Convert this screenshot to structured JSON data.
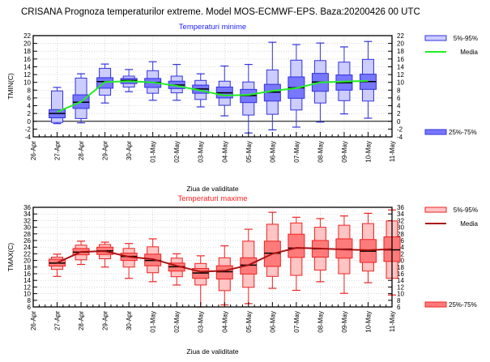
{
  "page_title": "CRISANA  Prognoza temperaturilor extreme.  Model MOS-ECMWF-EPS. Baza:20200426 00 UTC",
  "chart_data": [
    {
      "type": "box",
      "title": "Temperaturi minime",
      "title_color": "#2222ff",
      "xlabel": "Ziua de validitate",
      "ylabel": "TMIN(C)",
      "ylim": [
        -4,
        22
      ],
      "ytick_step": 2,
      "grid": true,
      "colors": {
        "outer": "#ccccff",
        "inner": "#7777ff",
        "stroke": "#3333dd",
        "median": "#000000",
        "mean_line": "#22ee22"
      },
      "x_ticks": [
        "26-Apr",
        "27-Apr",
        "28-Apr",
        "29-Apr",
        "30-Apr",
        "01-May",
        "02-May",
        "03-May",
        "04-May",
        "05-May",
        "06-May",
        "07-May",
        "08-May",
        "09-May",
        "10-May",
        "11-May"
      ],
      "legend": {
        "placement": "right",
        "items": [
          {
            "label": "5%-95%",
            "kind": "outer"
          },
          {
            "label": "Media",
            "kind": "mean"
          },
          {
            "label": "25%-75%",
            "kind": "inner"
          }
        ]
      },
      "days": [
        {
          "date": "27-Apr",
          "wmin": -0.6,
          "p5": -0.3,
          "p25": 0.9,
          "median": 2.0,
          "p75": 3.0,
          "p95": 7.8,
          "wmax": 8.7,
          "mean": 2.4
        },
        {
          "date": "28-Apr",
          "wmin": -0.4,
          "p5": 0.7,
          "p25": 3.3,
          "median": 4.9,
          "p75": 6.8,
          "p95": 11.1,
          "wmax": 12.2,
          "mean": 5.0
        },
        {
          "date": "29-Apr",
          "wmin": 4.7,
          "p5": 6.7,
          "p25": 8.5,
          "median": 10.2,
          "p75": 11.2,
          "p95": 13.6,
          "wmax": 14.7,
          "mean": 10.1
        },
        {
          "date": "30-Apr",
          "wmin": 7.6,
          "p5": 8.8,
          "p25": 9.7,
          "median": 10.5,
          "p75": 11.0,
          "p95": 11.6,
          "wmax": 13.3,
          "mean": 10.3
        },
        {
          "date": "01-May",
          "wmin": 5.4,
          "p5": 7.2,
          "p25": 8.7,
          "median": 10.0,
          "p75": 11.0,
          "p95": 13.0,
          "wmax": 15.3,
          "mean": 10.0
        },
        {
          "date": "02-May",
          "wmin": 5.4,
          "p5": 7.3,
          "p25": 8.4,
          "median": 9.3,
          "p75": 10.3,
          "p95": 11.6,
          "wmax": 14.6,
          "mean": 9.1
        },
        {
          "date": "03-May",
          "wmin": 3.7,
          "p5": 5.6,
          "p25": 7.2,
          "median": 8.3,
          "p75": 9.3,
          "p95": 10.5,
          "wmax": 12.2,
          "mean": 7.9
        },
        {
          "date": "04-May",
          "wmin": 1.4,
          "p5": 4.1,
          "p25": 6.0,
          "median": 7.3,
          "p75": 8.8,
          "p95": 10.3,
          "wmax": 14.2,
          "mean": 6.6
        },
        {
          "date": "05-May",
          "wmin": -3.0,
          "p5": 1.6,
          "p25": 4.8,
          "median": 6.6,
          "p75": 8.2,
          "p95": 10.1,
          "wmax": 14.6,
          "mean": 6.8
        },
        {
          "date": "06-May",
          "wmin": -2.2,
          "p5": 1.8,
          "p25": 5.2,
          "median": 7.5,
          "p75": 9.5,
          "p95": 13.2,
          "wmax": 20.3,
          "mean": 7.8
        },
        {
          "date": "07-May",
          "wmin": -1.5,
          "p5": 2.9,
          "p25": 5.9,
          "median": 8.6,
          "p75": 11.4,
          "p95": 15.7,
          "wmax": 19.7,
          "mean": 8.5
        },
        {
          "date": "08-May",
          "wmin": -0.2,
          "p5": 4.7,
          "p25": 7.7,
          "median": 10.1,
          "p75": 12.3,
          "p95": 15.6,
          "wmax": 20.1,
          "mean": 10.0
        },
        {
          "date": "09-May",
          "wmin": 1.9,
          "p5": 5.3,
          "p25": 8.0,
          "median": 9.9,
          "p75": 11.9,
          "p95": 15.2,
          "wmax": 19.1,
          "mean": 10.2
        },
        {
          "date": "10-May",
          "wmin": 0.8,
          "p5": 5.2,
          "p25": 8.2,
          "median": 10.2,
          "p75": 12.1,
          "p95": 15.9,
          "wmax": 20.5,
          "mean": 10.4
        }
      ]
    },
    {
      "type": "box",
      "title": "Temperaturi maxime",
      "title_color": "#ff2222",
      "xlabel": "Ziua de validitate",
      "ylabel": "TMAX(C)",
      "ylim": [
        6,
        36
      ],
      "ytick_step": 2,
      "grid": true,
      "colors": {
        "outer": "#ffc4c4",
        "inner": "#ff7b7b",
        "stroke": "#ee2222",
        "median": "#000000",
        "mean_line": "#aa1111"
      },
      "x_ticks": [
        "26-Apr",
        "27-Apr",
        "28-Apr",
        "29-Apr",
        "30-Apr",
        "01-May",
        "02-May",
        "03-May",
        "04-May",
        "05-May",
        "06-May",
        "07-May",
        "08-May",
        "09-May",
        "10-May",
        "11-May"
      ],
      "legend": {
        "placement": "right",
        "items": [
          {
            "label": "5%-95%",
            "kind": "outer"
          },
          {
            "label": "Media",
            "kind": "mean"
          },
          {
            "label": "25%-75%",
            "kind": "inner"
          }
        ]
      },
      "days": [
        {
          "date": "27-Apr",
          "wmin": 15.2,
          "p5": 17.3,
          "p25": 18.3,
          "median": 19.2,
          "p75": 20.4,
          "p95": 21.0,
          "wmax": 21.9,
          "mean": 19.3
        },
        {
          "date": "28-Apr",
          "wmin": 18.8,
          "p5": 20.2,
          "p25": 21.7,
          "median": 22.5,
          "p75": 23.6,
          "p95": 24.6,
          "wmax": 25.8,
          "mean": 22.6
        },
        {
          "date": "29-Apr",
          "wmin": 18.0,
          "p5": 20.5,
          "p25": 21.8,
          "median": 22.9,
          "p75": 24.0,
          "p95": 24.8,
          "wmax": 25.5,
          "mean": 22.8
        },
        {
          "date": "30-Apr",
          "wmin": 14.6,
          "p5": 18.0,
          "p25": 20.0,
          "median": 21.2,
          "p75": 22.2,
          "p95": 23.6,
          "wmax": 25.1,
          "mean": 21.1
        },
        {
          "date": "01-May",
          "wmin": 13.6,
          "p5": 16.3,
          "p25": 18.4,
          "median": 20.0,
          "p75": 21.9,
          "p95": 24.1,
          "wmax": 26.5,
          "mean": 20.4
        },
        {
          "date": "02-May",
          "wmin": 12.6,
          "p5": 15.1,
          "p25": 16.8,
          "median": 18.1,
          "p75": 19.2,
          "p95": 20.7,
          "wmax": 22.0,
          "mean": 18.4
        },
        {
          "date": "03-May",
          "wmin": 6.0,
          "p5": 12.6,
          "p25": 14.6,
          "median": 16.2,
          "p75": 17.6,
          "p95": 19.1,
          "wmax": 21.4,
          "mean": 16.6
        },
        {
          "date": "04-May",
          "wmin": 6.6,
          "p5": 10.9,
          "p25": 14.4,
          "median": 16.6,
          "p75": 18.4,
          "p95": 20.8,
          "wmax": 24.4,
          "mean": 16.9
        },
        {
          "date": "05-May",
          "wmin": 7.0,
          "p5": 11.9,
          "p25": 15.9,
          "median": 18.6,
          "p75": 20.8,
          "p95": 25.8,
          "wmax": 29.4,
          "mean": 18.6
        },
        {
          "date": "06-May",
          "wmin": 11.6,
          "p5": 15.2,
          "p25": 18.2,
          "median": 22.2,
          "p75": 25.8,
          "p95": 30.9,
          "wmax": 34.5,
          "mean": 22.0
        },
        {
          "date": "07-May",
          "wmin": 11.0,
          "p5": 15.5,
          "p25": 20.9,
          "median": 23.7,
          "p75": 27.9,
          "p95": 31.3,
          "wmax": 33.0,
          "mean": 23.8
        },
        {
          "date": "08-May",
          "wmin": 13.6,
          "p5": 17.1,
          "p25": 21.0,
          "median": 23.5,
          "p75": 26.0,
          "p95": 30.0,
          "wmax": 32.6,
          "mean": 23.6
        },
        {
          "date": "09-May",
          "wmin": 10.1,
          "p5": 16.0,
          "p25": 20.7,
          "median": 23.4,
          "p75": 26.5,
          "p95": 30.6,
          "wmax": 33.4,
          "mean": 23.3
        },
        {
          "date": "10-May",
          "wmin": 13.3,
          "p5": 16.8,
          "p25": 19.4,
          "median": 22.8,
          "p75": 26.3,
          "p95": 31.1,
          "wmax": 34.2,
          "mean": 23.1
        },
        {
          "date": "11-May",
          "wmin": 9.6,
          "p5": 14.6,
          "p25": 19.7,
          "median": 23.2,
          "p75": 27.1,
          "p95": 31.9,
          "wmax": 35.2,
          "mean": 23.4
        }
      ]
    }
  ]
}
